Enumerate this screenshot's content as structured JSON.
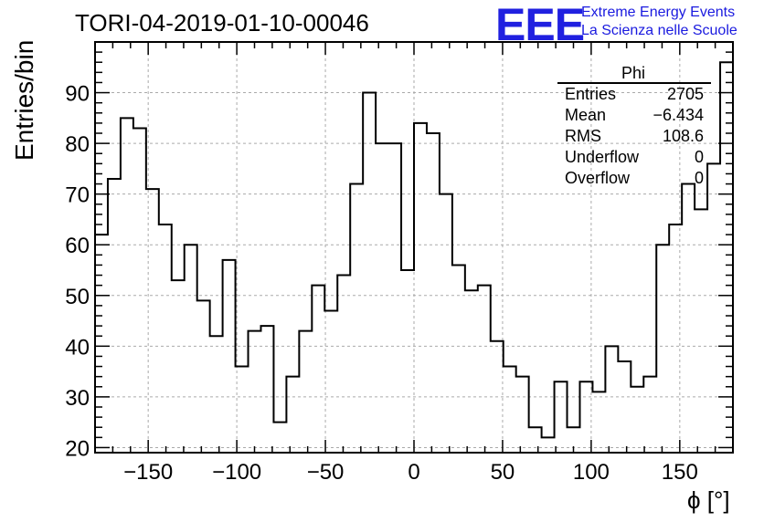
{
  "page_title": "TORI-04-2019-01-10-00046",
  "logo": {
    "mark": "EEE",
    "line1": "Extreme Energy Events",
    "line2": "La Scienza nelle Scuole"
  },
  "stats_box": {
    "title": "Phi",
    "rows": [
      {
        "label": "Entries",
        "value": "2705"
      },
      {
        "label": "Mean",
        "value": "−6.434"
      },
      {
        "label": "RMS",
        "value": "108.6"
      },
      {
        "label": "Underflow",
        "value": "0"
      },
      {
        "label": "Overflow",
        "value": "0"
      }
    ]
  },
  "chart_data": {
    "type": "bar",
    "style": "step-histogram",
    "title": "TORI-04-2019-01-10-00046",
    "xlabel": "ϕ [°]",
    "ylabel": "Entries/bin",
    "xlim": [
      -180,
      180
    ],
    "ylim": [
      19,
      100
    ],
    "grid": true,
    "bin_width": 7.2,
    "x_ticks": [
      -150,
      -100,
      -50,
      0,
      50,
      100,
      150
    ],
    "x_tick_labels": [
      "−150",
      "−100",
      "−50",
      "0",
      "50",
      "100",
      "150"
    ],
    "y_ticks": [
      20,
      30,
      40,
      50,
      60,
      70,
      80,
      90
    ],
    "y_tick_labels": [
      "20",
      "30",
      "40",
      "50",
      "60",
      "70",
      "80",
      "90"
    ],
    "values": [
      62,
      73,
      85,
      83,
      71,
      64,
      53,
      60,
      49,
      42,
      57,
      36,
      43,
      44,
      25,
      34,
      43,
      52,
      47,
      54,
      72,
      90,
      80,
      80,
      55,
      84,
      82,
      70,
      56,
      51,
      52,
      41,
      36,
      34,
      24,
      22,
      33,
      24,
      33,
      31,
      40,
      37,
      32,
      34,
      60,
      64,
      72,
      67,
      76,
      96
    ]
  }
}
